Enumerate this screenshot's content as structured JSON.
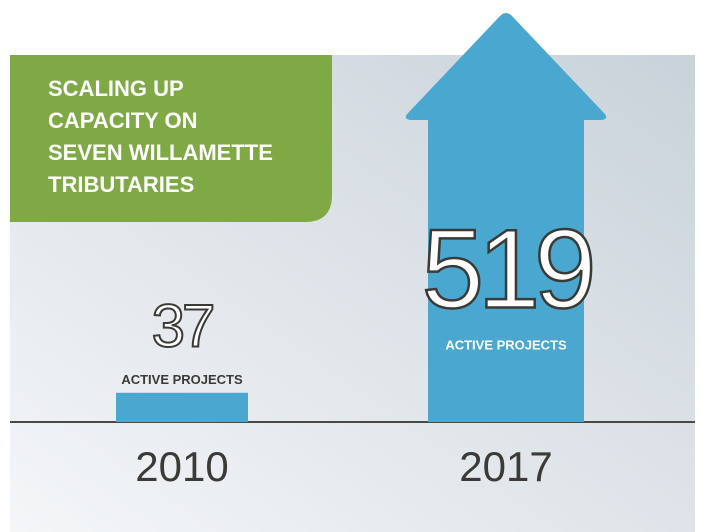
{
  "chart_data": {
    "type": "bar",
    "title_lines": [
      "SCALING UP",
      "CAPACITY ON",
      "SEVEN WILLAMETTE",
      "TRIBUTARIES"
    ],
    "categories": [
      "2010",
      "2017"
    ],
    "values": [
      37,
      519
    ],
    "value_unit_label": "ACTIVE PROJECTS",
    "color": "#4aa8d0",
    "title_box_color": "#7ea944"
  }
}
